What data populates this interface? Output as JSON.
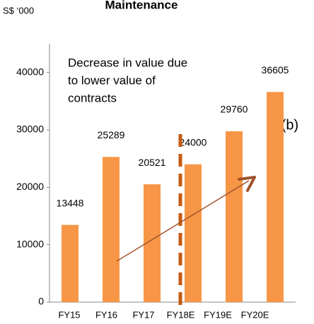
{
  "chart_data": {
    "type": "bar",
    "title": "Maintenance",
    "unit_label": "S$ ‘000",
    "categories": [
      "FY15",
      "FY16",
      "FY17",
      "FY18E",
      "FY19E",
      "FY20E"
    ],
    "values": [
      13448,
      25289,
      20521,
      24000,
      29760,
      36605
    ],
    "color": "#f79646",
    "ylim": [
      0,
      45000
    ],
    "yticks": [
      0,
      10000,
      20000,
      30000,
      40000
    ],
    "grid": false,
    "annotation": [
      "Decrease in value due",
      "to lower value of",
      "contracts"
    ],
    "marker_label": "(b)"
  }
}
